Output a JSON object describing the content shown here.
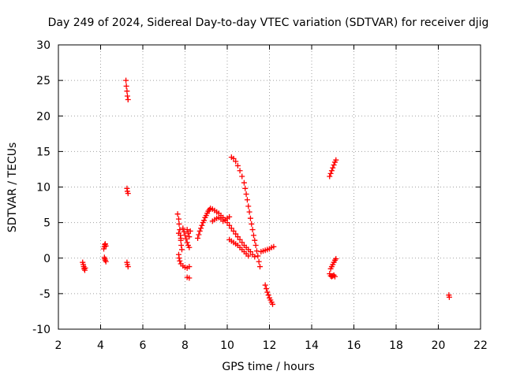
{
  "chart_data": {
    "type": "scatter",
    "title": "Day 249 of 2024, Sidereal Day-to-day VTEC variation (SDTVAR) for receiver djig",
    "xlabel": "GPS time / hours",
    "ylabel": "SDTVAR / TECUs",
    "xlim": [
      2,
      22
    ],
    "ylim": [
      -10,
      30
    ],
    "xticks": [
      "2",
      "4",
      "6",
      "8",
      "10",
      "12",
      "14",
      "16",
      "18",
      "20",
      "22"
    ],
    "yticks": [
      "-10",
      "-5",
      "0",
      "5",
      "10",
      "15",
      "20",
      "25",
      "30"
    ],
    "grid": true,
    "marker": "plus",
    "series": [
      {
        "name": "SDTVAR",
        "color": "#ff0000",
        "points": [
          [
            3.15,
            -0.6
          ],
          [
            3.18,
            -0.9
          ],
          [
            3.2,
            -1.2
          ],
          [
            3.22,
            -1.5
          ],
          [
            3.25,
            -1.7
          ],
          [
            3.27,
            -1.4
          ],
          [
            4.15,
            1.3
          ],
          [
            4.18,
            1.6
          ],
          [
            4.2,
            1.9
          ],
          [
            4.22,
            2.0
          ],
          [
            4.25,
            1.7
          ],
          [
            4.2,
            -0.1
          ],
          [
            4.22,
            -0.3
          ],
          [
            4.25,
            -0.5
          ],
          [
            4.18,
            0.1
          ],
          [
            5.2,
            25.0
          ],
          [
            5.22,
            24.2
          ],
          [
            5.25,
            23.5
          ],
          [
            5.27,
            22.8
          ],
          [
            5.3,
            22.3
          ],
          [
            5.25,
            9.8
          ],
          [
            5.27,
            9.4
          ],
          [
            5.3,
            9.1
          ],
          [
            5.25,
            -0.6
          ],
          [
            5.27,
            -0.9
          ],
          [
            5.3,
            -1.2
          ],
          [
            7.65,
            6.2
          ],
          [
            7.7,
            5.5
          ],
          [
            7.72,
            4.8
          ],
          [
            7.75,
            4.0
          ],
          [
            7.78,
            3.2
          ],
          [
            7.8,
            2.5
          ],
          [
            7.82,
            1.8
          ],
          [
            7.85,
            1.2
          ],
          [
            7.7,
            0.5
          ],
          [
            7.72,
            0.0
          ],
          [
            7.75,
            -0.4
          ],
          [
            7.8,
            -0.8
          ],
          [
            7.9,
            -1.1
          ],
          [
            8.0,
            -1.3
          ],
          [
            8.1,
            -1.4
          ],
          [
            8.2,
            -1.2
          ],
          [
            8.1,
            -2.7
          ],
          [
            8.2,
            -2.8
          ],
          [
            7.9,
            4.2
          ],
          [
            7.95,
            3.7
          ],
          [
            8.0,
            3.2
          ],
          [
            8.05,
            2.7
          ],
          [
            8.1,
            2.2
          ],
          [
            8.15,
            1.8
          ],
          [
            8.2,
            1.5
          ],
          [
            8.1,
            4.0
          ],
          [
            8.15,
            3.5
          ],
          [
            8.2,
            3.0
          ],
          [
            8.25,
            3.8
          ],
          [
            7.7,
            3.5
          ],
          [
            7.8,
            2.8
          ],
          [
            8.6,
            2.8
          ],
          [
            8.65,
            3.3
          ],
          [
            8.7,
            3.8
          ],
          [
            8.75,
            4.2
          ],
          [
            8.8,
            4.6
          ],
          [
            8.85,
            5.0
          ],
          [
            8.9,
            5.3
          ],
          [
            8.95,
            5.7
          ],
          [
            9.0,
            6.0
          ],
          [
            9.05,
            6.3
          ],
          [
            9.1,
            6.6
          ],
          [
            9.15,
            6.8
          ],
          [
            9.2,
            7.0
          ],
          [
            9.3,
            6.9
          ],
          [
            9.4,
            6.7
          ],
          [
            9.5,
            6.5
          ],
          [
            9.6,
            6.3
          ],
          [
            9.7,
            6.0
          ],
          [
            9.8,
            5.7
          ],
          [
            9.9,
            5.3
          ],
          [
            10.0,
            5.0
          ],
          [
            10.1,
            4.6
          ],
          [
            10.2,
            4.2
          ],
          [
            10.3,
            3.8
          ],
          [
            10.4,
            3.4
          ],
          [
            10.5,
            3.0
          ],
          [
            10.6,
            2.6
          ],
          [
            10.7,
            2.2
          ],
          [
            10.8,
            1.8
          ],
          [
            10.9,
            1.5
          ],
          [
            11.0,
            1.2
          ],
          [
            11.1,
            0.9
          ],
          [
            11.2,
            0.5
          ],
          [
            11.3,
            0.2
          ],
          [
            9.3,
            5.2
          ],
          [
            9.4,
            5.4
          ],
          [
            9.5,
            5.6
          ],
          [
            9.6,
            5.7
          ],
          [
            9.7,
            5.5
          ],
          [
            9.8,
            5.2
          ],
          [
            9.9,
            5.4
          ],
          [
            10.0,
            5.6
          ],
          [
            10.1,
            5.8
          ],
          [
            10.1,
            2.6
          ],
          [
            10.2,
            2.4
          ],
          [
            10.3,
            2.2
          ],
          [
            10.4,
            2.0
          ],
          [
            10.5,
            1.8
          ],
          [
            10.6,
            1.5
          ],
          [
            10.7,
            1.2
          ],
          [
            10.8,
            0.9
          ],
          [
            10.9,
            0.6
          ],
          [
            11.0,
            0.3
          ],
          [
            10.2,
            14.2
          ],
          [
            10.3,
            14.0
          ],
          [
            10.4,
            13.6
          ],
          [
            10.5,
            13.0
          ],
          [
            10.6,
            12.3
          ],
          [
            10.7,
            11.5
          ],
          [
            10.8,
            10.6
          ],
          [
            10.85,
            9.8
          ],
          [
            10.9,
            9.0
          ],
          [
            10.95,
            8.2
          ],
          [
            11.0,
            7.3
          ],
          [
            11.05,
            6.5
          ],
          [
            11.1,
            5.6
          ],
          [
            11.15,
            4.8
          ],
          [
            11.2,
            4.0
          ],
          [
            11.25,
            3.2
          ],
          [
            11.3,
            2.5
          ],
          [
            11.35,
            1.8
          ],
          [
            11.4,
            1.0
          ],
          [
            11.45,
            0.3
          ],
          [
            11.5,
            -0.5
          ],
          [
            11.55,
            -1.2
          ],
          [
            11.6,
            0.9
          ],
          [
            11.7,
            1.0
          ],
          [
            11.8,
            1.1
          ],
          [
            11.9,
            1.2
          ],
          [
            12.0,
            1.3
          ],
          [
            12.1,
            1.5
          ],
          [
            12.2,
            1.6
          ],
          [
            11.8,
            -3.8
          ],
          [
            11.85,
            -4.3
          ],
          [
            11.9,
            -4.8
          ],
          [
            11.95,
            -5.2
          ],
          [
            12.0,
            -5.6
          ],
          [
            12.05,
            -5.9
          ],
          [
            12.1,
            -6.2
          ],
          [
            12.15,
            -6.5
          ],
          [
            14.85,
            11.5
          ],
          [
            14.9,
            11.9
          ],
          [
            14.95,
            12.3
          ],
          [
            15.0,
            12.7
          ],
          [
            15.05,
            13.1
          ],
          [
            15.1,
            13.5
          ],
          [
            15.15,
            13.8
          ],
          [
            14.85,
            -2.2
          ],
          [
            14.9,
            -2.5
          ],
          [
            14.95,
            -2.6
          ],
          [
            15.0,
            -2.5
          ],
          [
            15.05,
            -2.4
          ],
          [
            15.1,
            -2.6
          ],
          [
            14.9,
            -1.5
          ],
          [
            14.95,
            -1.2
          ],
          [
            15.0,
            -0.9
          ],
          [
            15.05,
            -0.6
          ],
          [
            15.1,
            -0.3
          ],
          [
            15.15,
            -0.1
          ],
          [
            20.5,
            -5.2
          ],
          [
            20.52,
            -5.5
          ]
        ]
      }
    ]
  }
}
